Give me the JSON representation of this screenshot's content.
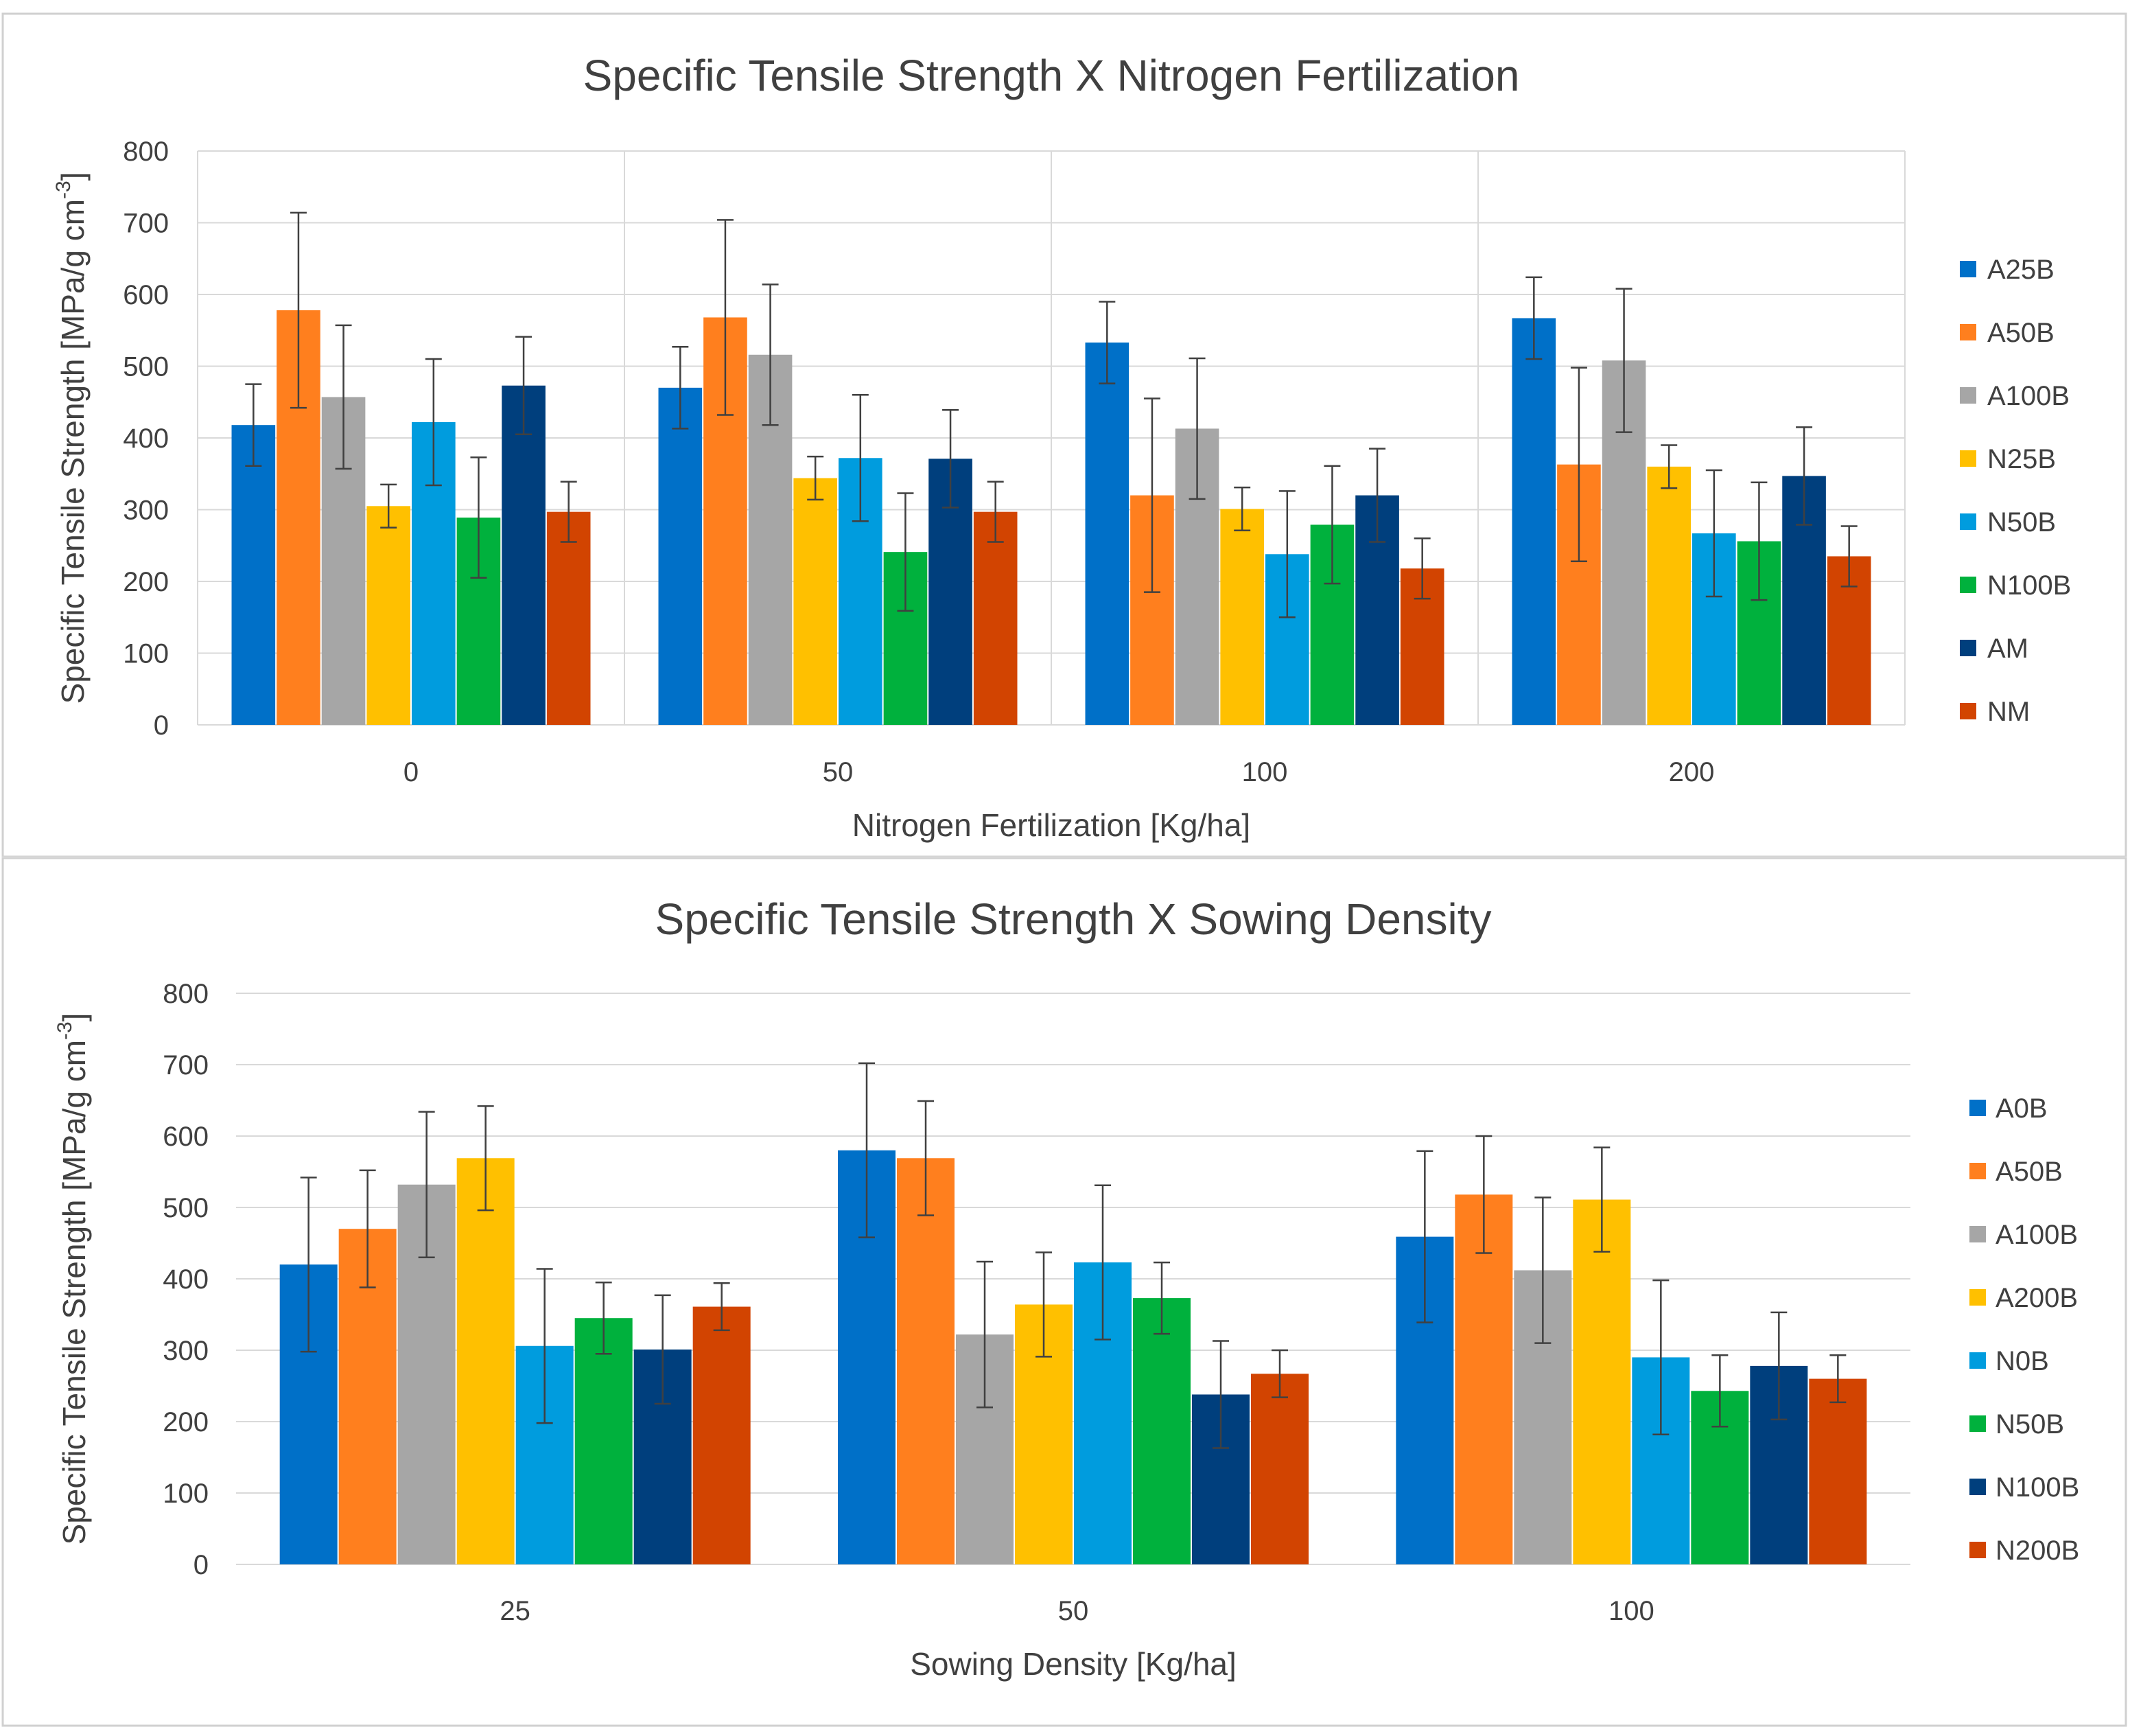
{
  "colors": {
    "background": "#ffffff",
    "gridline": "#d9d9d9",
    "text": "#404040",
    "errorbar": "#404040",
    "panel_border": "#d0d0d0"
  },
  "chart_data": [
    {
      "type": "bar",
      "title": "Specific Tensile Strength X Nitrogen Fertilization",
      "xlabel": "Nitrogen  Fertilization  [Kg/ha]",
      "ylabel": "Specific Tensile  Strength  [MPa/g cm",
      "ylabel_sup": "-3",
      "ylabel_close": "]",
      "ylim": [
        0,
        800
      ],
      "yticks": [
        "0",
        "100",
        "200",
        "300",
        "400",
        "500",
        "600",
        "700",
        "800"
      ],
      "grid": true,
      "category_separators": true,
      "legend": "right",
      "categories": [
        "0",
        "50",
        "100",
        "200"
      ],
      "series": [
        {
          "name": "A25B",
          "color": "#0070C8",
          "values": [
            418,
            470,
            533,
            567
          ],
          "errors": [
            57,
            57,
            57,
            57
          ]
        },
        {
          "name": "A50B",
          "color": "#FF7F1E",
          "values": [
            578,
            568,
            320,
            363
          ],
          "errors": [
            136,
            136,
            135,
            135
          ]
        },
        {
          "name": "A100B",
          "color": "#A6A6A6",
          "values": [
            457,
            516,
            413,
            508
          ],
          "errors": [
            100,
            98,
            98,
            100
          ]
        },
        {
          "name": "N25B",
          "color": "#FFC000",
          "values": [
            305,
            344,
            301,
            360
          ],
          "errors": [
            30,
            30,
            30,
            30
          ]
        },
        {
          "name": "N50B",
          "color": "#009CDE",
          "values": [
            422,
            372,
            238,
            267
          ],
          "errors": [
            88,
            88,
            88,
            88
          ]
        },
        {
          "name": "N100B",
          "color": "#00B13D",
          "values": [
            289,
            241,
            279,
            256
          ],
          "errors": [
            84,
            82,
            82,
            82
          ]
        },
        {
          "name": "AM",
          "color": "#003F7D",
          "values": [
            473,
            371,
            320,
            347
          ],
          "errors": [
            68,
            68,
            65,
            68
          ]
        },
        {
          "name": "NM",
          "color": "#D24401",
          "values": [
            297,
            297,
            218,
            235
          ],
          "errors": [
            42,
            42,
            42,
            42
          ]
        }
      ]
    },
    {
      "type": "bar",
      "title": "Specific Tensile Strength  X Sowing Density",
      "xlabel": "Sowing Density [Kg/ha]",
      "ylabel": "Specific Tensile  Strength  [MPa/g cm",
      "ylabel_sup": "-3",
      "ylabel_close": "]",
      "ylim": [
        0,
        800
      ],
      "yticks": [
        "0",
        "100",
        "200",
        "300",
        "400",
        "500",
        "600",
        "700",
        "800"
      ],
      "grid": true,
      "category_separators": false,
      "legend": "right",
      "categories": [
        "25",
        "50",
        "100"
      ],
      "series": [
        {
          "name": "A0B",
          "color": "#0070C8",
          "values": [
            420,
            580,
            459
          ],
          "errors": [
            122,
            122,
            120
          ]
        },
        {
          "name": "A50B",
          "color": "#FF7F1E",
          "values": [
            470,
            569,
            518
          ],
          "errors": [
            82,
            80,
            82
          ]
        },
        {
          "name": "A100B",
          "color": "#A6A6A6",
          "values": [
            532,
            322,
            412
          ],
          "errors": [
            102,
            102,
            102
          ]
        },
        {
          "name": "A200B",
          "color": "#FFC000",
          "values": [
            569,
            364,
            511
          ],
          "errors": [
            73,
            73,
            73
          ]
        },
        {
          "name": "N0B",
          "color": "#009CDE",
          "values": [
            306,
            423,
            290
          ],
          "errors": [
            108,
            108,
            108
          ]
        },
        {
          "name": "N50B",
          "color": "#00B13D",
          "values": [
            345,
            373,
            243
          ],
          "errors": [
            50,
            50,
            50
          ]
        },
        {
          "name": "N100B",
          "color": "#003F7D",
          "values": [
            301,
            238,
            278
          ],
          "errors": [
            76,
            75,
            75
          ]
        },
        {
          "name": "N200B",
          "color": "#D24401",
          "values": [
            361,
            267,
            260
          ],
          "errors": [
            33,
            33,
            33
          ]
        }
      ]
    }
  ]
}
